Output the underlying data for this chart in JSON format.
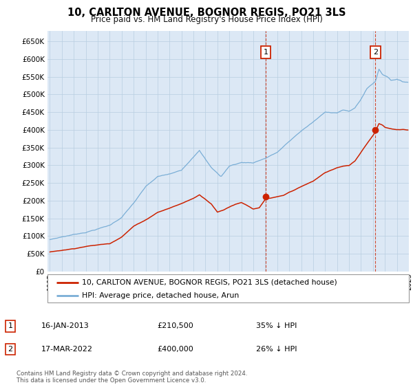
{
  "title": "10, CARLTON AVENUE, BOGNOR REGIS, PO21 3LS",
  "subtitle": "Price paid vs. HM Land Registry's House Price Index (HPI)",
  "legend_house": "10, CARLTON AVENUE, BOGNOR REGIS, PO21 3LS (detached house)",
  "legend_hpi": "HPI: Average price, detached house, Arun",
  "footer_line1": "Contains HM Land Registry data © Crown copyright and database right 2024.",
  "footer_line2": "This data is licensed under the Open Government Licence v3.0.",
  "sale1_year": 2013.04,
  "sale1_value": 210500,
  "sale2_year": 2022.21,
  "sale2_value": 400000,
  "ann1_date": "16-JAN-2013",
  "ann1_price": "£210,500",
  "ann1_hpi": "35% ↓ HPI",
  "ann2_date": "17-MAR-2022",
  "ann2_price": "£400,000",
  "ann2_hpi": "26% ↓ HPI",
  "hpi_color": "#7aaed6",
  "house_color": "#cc2200",
  "bg_color": "#dce8f5",
  "fig_bg": "#ffffff",
  "grid_color": "#b8cee0",
  "dash_color": "#cc2200",
  "ylim_min": 0,
  "ylim_max": 680000,
  "xmin": 1995,
  "xmax": 2025,
  "sale1_hpi_at_sale": 323846,
  "sale2_hpi_at_sale": 540540
}
